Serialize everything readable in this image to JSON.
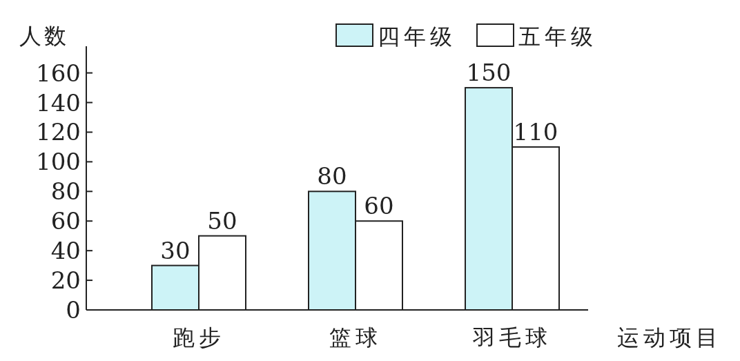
{
  "chart_data": {
    "type": "bar",
    "xlabel": "运动项目",
    "ylabel": "人数",
    "categories": [
      "跑步",
      "篮球",
      "羽毛球"
    ],
    "series": [
      {
        "name": "四年级",
        "color": "#cdf3f7",
        "values": [
          30,
          80,
          150
        ]
      },
      {
        "name": "五年级",
        "color": "#ffffff",
        "values": [
          50,
          60,
          110
        ]
      }
    ],
    "ylim": [
      0,
      178
    ],
    "yticks": [
      0,
      20,
      40,
      60,
      80,
      100,
      120,
      140,
      160
    ],
    "data_labels": true,
    "legend": "top right",
    "grid": false
  }
}
